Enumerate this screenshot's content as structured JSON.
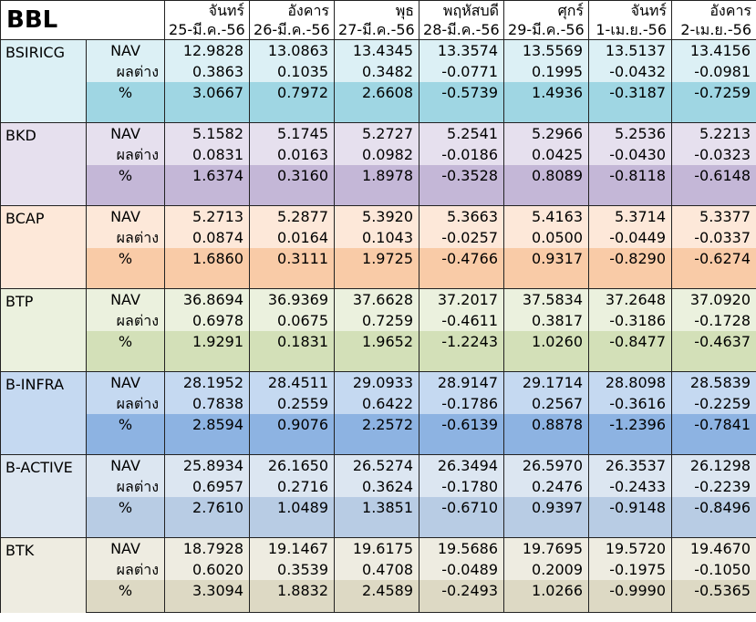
{
  "title": "BBL",
  "days": [
    "จันทร์",
    "อังคาร",
    "พุธ",
    "พฤหัสบดี",
    "ศุกร์",
    "จันทร์",
    "อังคาร"
  ],
  "dates": [
    "25-มี.ค.-56",
    "26-มี.ค.-56",
    "27-มี.ค.-56",
    "28-มี.ค.-56",
    "29-มี.ค.-56",
    "1-เม.ย.-56",
    "2-เม.ย.-56"
  ],
  "row_labels": [
    "NAV",
    "ผลต่าง",
    "%"
  ],
  "funds": [
    {
      "name": "BSIRICG",
      "nav": [
        "12.9828",
        "13.0863",
        "13.4345",
        "13.3574",
        "13.5569",
        "13.5137",
        "13.4156"
      ],
      "diff": [
        "0.3863",
        "0.1035",
        "0.3482",
        "-0.0771",
        "0.1995",
        "-0.0432",
        "-0.0981"
      ],
      "pct": [
        "3.0667",
        "0.7972",
        "2.6608",
        "-0.5739",
        "1.4936",
        "-0.3187",
        "-0.7259"
      ],
      "light": "#dcf0f5",
      "dark": "#9fd6e3"
    },
    {
      "name": "BKD",
      "nav": [
        "5.1582",
        "5.1745",
        "5.2727",
        "5.2541",
        "5.2966",
        "5.2536",
        "5.2213"
      ],
      "diff": [
        "0.0831",
        "0.0163",
        "0.0982",
        "-0.0186",
        "0.0425",
        "-0.0430",
        "-0.0323"
      ],
      "pct": [
        "1.6374",
        "0.3160",
        "1.8978",
        "-0.3528",
        "0.8089",
        "-0.8118",
        "-0.6148"
      ],
      "light": "#e6e0ee",
      "dark": "#c4b7d7"
    },
    {
      "name": "BCAP",
      "nav": [
        "5.2713",
        "5.2877",
        "5.3920",
        "5.3663",
        "5.4163",
        "5.3714",
        "5.3377"
      ],
      "diff": [
        "0.0874",
        "0.0164",
        "0.1043",
        "-0.0257",
        "0.0500",
        "-0.0449",
        "-0.0337"
      ],
      "pct": [
        "1.6860",
        "0.3111",
        "1.9725",
        "-0.4766",
        "0.9317",
        "-0.8290",
        "-0.6274"
      ],
      "light": "#fde8d9",
      "dark": "#f9cba7"
    },
    {
      "name": "BTP",
      "nav": [
        "36.8694",
        "36.9369",
        "37.6628",
        "37.2017",
        "37.5834",
        "37.2648",
        "37.0920"
      ],
      "diff": [
        "0.6978",
        "0.0675",
        "0.7259",
        "-0.4611",
        "0.3817",
        "-0.3186",
        "-0.1728"
      ],
      "pct": [
        "1.9291",
        "0.1831",
        "1.9652",
        "-1.2243",
        "1.0260",
        "-0.8477",
        "-0.4637"
      ],
      "light": "#ebf1de",
      "dark": "#d3e0b8"
    },
    {
      "name": "B-INFRA",
      "nav": [
        "28.1952",
        "28.4511",
        "29.0933",
        "28.9147",
        "29.1714",
        "28.8098",
        "28.5839"
      ],
      "diff": [
        "0.7838",
        "0.2559",
        "0.6422",
        "-0.1786",
        "0.2567",
        "-0.3616",
        "-0.2259"
      ],
      "pct": [
        "2.8594",
        "0.9076",
        "2.2572",
        "-0.6139",
        "0.8878",
        "-1.2396",
        "-0.7841"
      ],
      "light": "#c5d9f1",
      "dark": "#8db3e2"
    },
    {
      "name": "B-ACTIVE",
      "nav": [
        "25.8934",
        "26.1650",
        "26.5274",
        "26.3494",
        "26.5970",
        "26.3537",
        "26.1298"
      ],
      "diff": [
        "0.6957",
        "0.2716",
        "0.3624",
        "-0.1780",
        "0.2476",
        "-0.2433",
        "-0.2239"
      ],
      "pct": [
        "2.7610",
        "1.0489",
        "1.3851",
        "-0.6710",
        "0.9397",
        "-0.9148",
        "-0.8496"
      ],
      "light": "#dce6f1",
      "dark": "#b8cce4"
    },
    {
      "name": "BTK",
      "nav": [
        "18.7928",
        "19.1467",
        "19.6175",
        "19.5686",
        "19.7695",
        "19.5720",
        "19.4670"
      ],
      "diff": [
        "0.6020",
        "0.3539",
        "0.4708",
        "-0.0489",
        "0.2009",
        "-0.1975",
        "-0.1050"
      ],
      "pct": [
        "3.3094",
        "1.8832",
        "2.4589",
        "-0.2493",
        "1.0266",
        "-0.9990",
        "-0.5365"
      ],
      "light": "#eeece1",
      "dark": "#ddd9c4"
    }
  ]
}
